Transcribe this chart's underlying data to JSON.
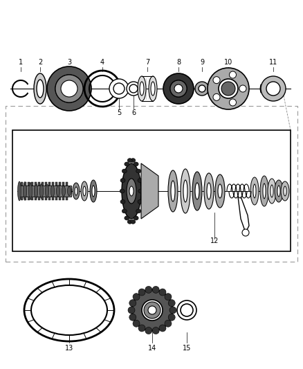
{
  "bg_color": "#ffffff",
  "label_color": "#000000",
  "line_color": "#000000",
  "font_size": 7,
  "fig_w": 4.38,
  "fig_h": 5.33,
  "dpi": 100
}
